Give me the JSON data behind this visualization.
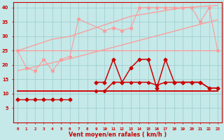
{
  "bg_color": "#c5e8e8",
  "grid_color": "#99cccc",
  "dark_red": "#cc0000",
  "light_pink": "#ff9999",
  "xlabel": "Vent moyen/en rafales ( km/h )",
  "yticks": [
    5,
    10,
    15,
    20,
    25,
    30,
    35,
    40
  ],
  "xticks": [
    0,
    1,
    2,
    3,
    4,
    5,
    6,
    7,
    8,
    9,
    10,
    11,
    12,
    13,
    14,
    15,
    16,
    17,
    18,
    19,
    20,
    21,
    22,
    23
  ],
  "trend_low": [
    18,
    18.7,
    19.4,
    20.1,
    20.8,
    21.5,
    22.2,
    23.0,
    23.8,
    24.6,
    25.4,
    26.2,
    27.0,
    27.8,
    28.6,
    29.4,
    30.2,
    31.0,
    31.8,
    32.6,
    33.4,
    34.2,
    35.0,
    35.8
  ],
  "trend_high": [
    25,
    26,
    27,
    28,
    29,
    29.5,
    30,
    31,
    32,
    33,
    34,
    35,
    36,
    37,
    37.5,
    38,
    38.5,
    39,
    39.5,
    40,
    40.2,
    40.4,
    40.6,
    40.8
  ],
  "flat_25": [
    25,
    25,
    25,
    25,
    25,
    25,
    25,
    25,
    25,
    25,
    25,
    25,
    25,
    25,
    25,
    25,
    25,
    25,
    25,
    25,
    25,
    25,
    25,
    25
  ],
  "flat_11": [
    11,
    11,
    11,
    11,
    11,
    11,
    11,
    11,
    11,
    11,
    11,
    11,
    11,
    11,
    11,
    11,
    11,
    11,
    11,
    11,
    11,
    11,
    11,
    11
  ],
  "spiky_light_x": [
    0,
    1,
    2,
    3,
    4,
    5,
    6,
    7,
    10,
    11,
    12,
    13,
    14,
    15,
    16,
    17,
    18,
    19,
    20,
    21,
    22,
    23
  ],
  "spiky_light_y": [
    25,
    19,
    18,
    22,
    18,
    22,
    23,
    36,
    32,
    33,
    32,
    33,
    40,
    40,
    40,
    40,
    40,
    40,
    40,
    35,
    40,
    25
  ],
  "dark_spiky_x": [
    0,
    1,
    2,
    3,
    4,
    5,
    6,
    7,
    8,
    9,
    10,
    11,
    12,
    13,
    14,
    15,
    16,
    17,
    18,
    19,
    20,
    21,
    22,
    23
  ],
  "dark_spiky_y": [
    null,
    null,
    null,
    null,
    null,
    null,
    null,
    null,
    null,
    14,
    14,
    22,
    14,
    19,
    22,
    22,
    12,
    22,
    14,
    14,
    14,
    14,
    12,
    12
  ],
  "dark_mean_x": [
    0,
    1,
    2,
    3,
    4,
    5,
    6,
    7,
    8,
    9,
    10,
    11,
    12,
    13,
    14,
    15,
    16,
    17,
    18,
    19,
    20,
    21,
    22,
    23
  ],
  "dark_mean_y": [
    null,
    null,
    null,
    null,
    null,
    null,
    null,
    null,
    null,
    11,
    11,
    14,
    14,
    14,
    14,
    14,
    13,
    14,
    14,
    14,
    14,
    14,
    12,
    12
  ],
  "dark_flat_11": [
    11,
    11,
    11,
    11,
    11,
    11,
    11,
    11,
    11,
    11,
    11,
    11,
    11,
    11,
    11,
    11,
    11,
    11,
    11,
    11,
    11,
    11,
    11,
    11
  ],
  "dark_low_x": [
    0,
    1,
    2,
    3,
    4,
    5,
    6
  ],
  "dark_low_y": [
    8,
    8,
    8,
    8,
    8,
    8,
    8
  ],
  "light_low_x": [
    0,
    1,
    2,
    3,
    4,
    5,
    6
  ],
  "light_low_y": [
    8,
    8,
    8,
    8,
    8,
    8,
    8
  ]
}
